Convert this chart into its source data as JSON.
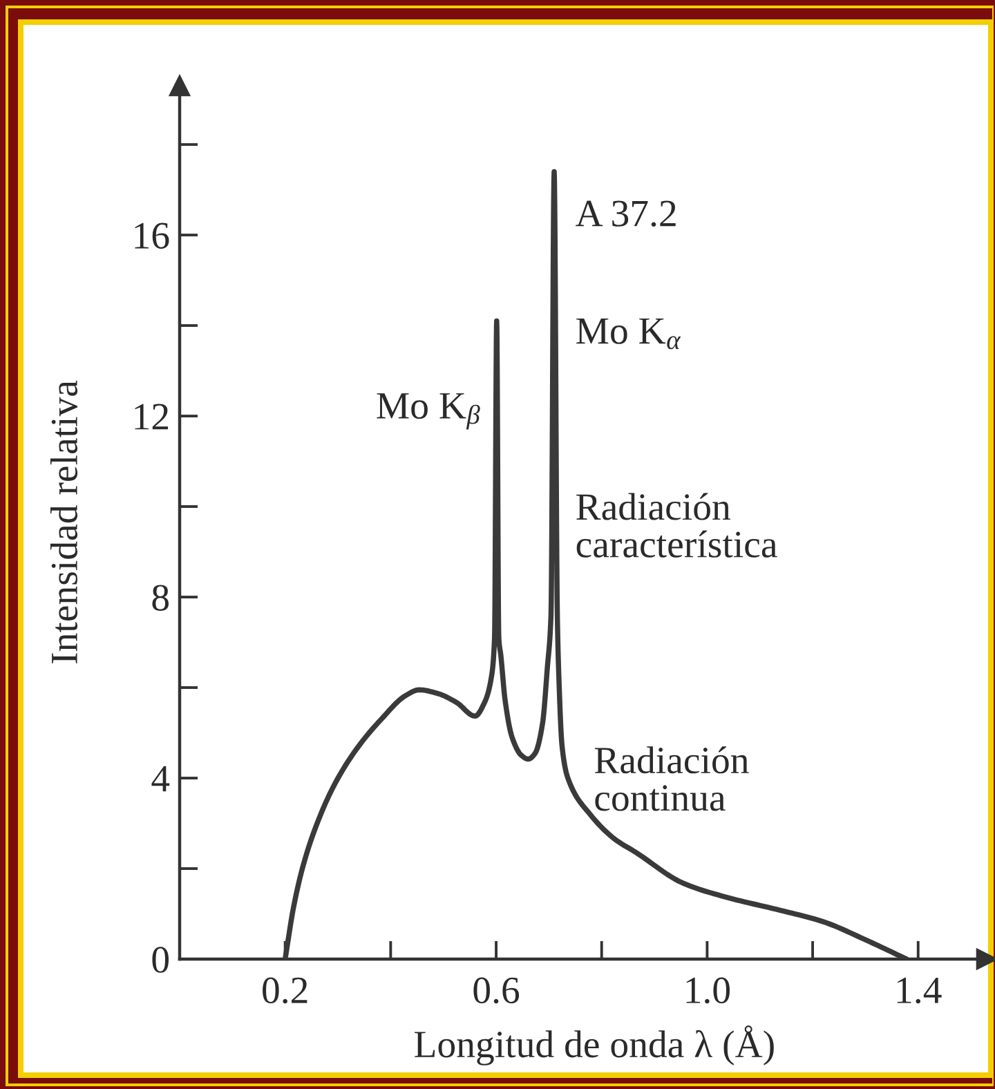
{
  "chart_data": {
    "type": "line",
    "xlabel": "Longitud de onda λ (Å)",
    "ylabel": "Intensidad relativa",
    "x": [
      0.2,
      0.216,
      0.234,
      0.26,
      0.295,
      0.339,
      0.383,
      0.428,
      0.454,
      0.489,
      0.525,
      0.56,
      0.578,
      0.591,
      0.597,
      0.601,
      0.605,
      0.609,
      0.617,
      0.63,
      0.648,
      0.661,
      0.674,
      0.688,
      0.697,
      0.704,
      0.71,
      0.716,
      0.719,
      0.725,
      0.736,
      0.778,
      0.825,
      0.866,
      0.954,
      1.042,
      1.131,
      1.219,
      1.307,
      1.378
    ],
    "series": [
      {
        "color": "#3a3a3a",
        "values": [
          0,
          1.15,
          2.06,
          2.98,
          3.89,
          4.7,
          5.31,
          5.82,
          5.95,
          5.87,
          5.67,
          5.37,
          5.67,
          6.23,
          7.1,
          14.1,
          7.1,
          6.7,
          5.72,
          4.91,
          4.5,
          4.42,
          4.55,
          5.21,
          6.43,
          7.6,
          17.4,
          7.6,
          6.2,
          4.7,
          4.0,
          3.2,
          2.65,
          2.35,
          1.68,
          1.35,
          1.1,
          0.83,
          0.39,
          0
        ]
      }
    ],
    "xlim": [
      0,
      1.53
    ],
    "ylim": [
      0,
      19.3
    ],
    "xticks": [
      0.2,
      {
        "value": 0.4,
        "label": null
      },
      0.6,
      {
        "value": 0.8,
        "label": null
      },
      {
        "value": 1.0,
        "label": "1.0"
      },
      {
        "value": 1.2,
        "label": null
      },
      1.4
    ],
    "yticks": [
      0,
      {
        "value": 2,
        "label": null
      },
      4,
      {
        "value": 6,
        "label": null
      },
      8,
      {
        "value": 10,
        "label": null
      },
      12,
      {
        "value": 14,
        "label": null
      },
      16,
      {
        "value": 18,
        "label": null
      }
    ],
    "line_style": "solid",
    "annotations": [
      {
        "text": "A 37.2",
        "x": 0.71,
        "y": 16.4
      },
      {
        "text": "Mo K$_{α}$",
        "x": 0.71,
        "y": 13.8
      },
      {
        "text": "Mo K$_{β}$",
        "x": 0.601,
        "y": 12.1
      },
      {
        "text": "Radiación\ncaracterística",
        "x": 0.71,
        "y": 9.5
      },
      {
        "text": "Radiación\ncontinua",
        "x": 0.745,
        "y": 3.9
      }
    ]
  }
}
